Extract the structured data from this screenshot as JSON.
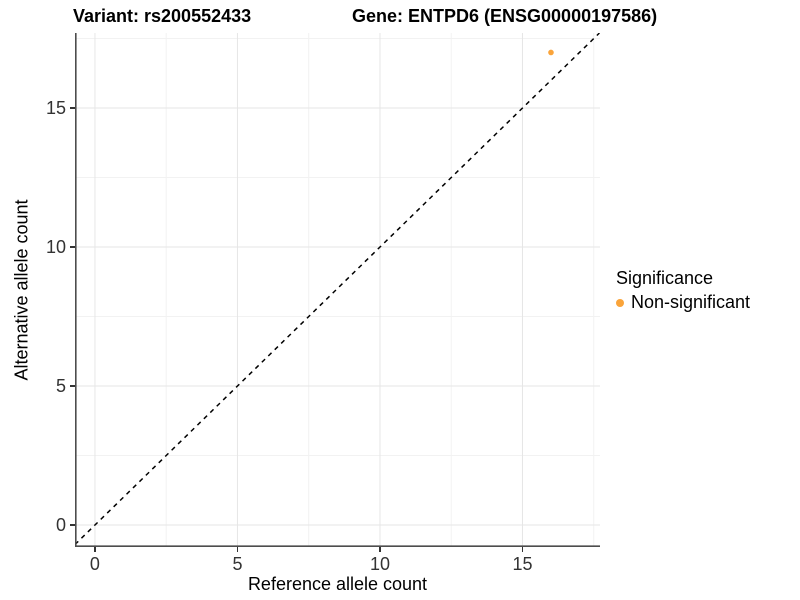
{
  "figure": {
    "title_left": "Variant: rs200552433",
    "title_right": "Gene: ENTPD6 (ENSG00000197586)",
    "x_axis_title": "Reference allele count",
    "y_axis_title": "Alternative allele count",
    "legend_title": "Significance",
    "legend_items": [
      {
        "label": "Non-significant",
        "color": "#FAA43A"
      }
    ]
  },
  "chart_data": {
    "type": "scatter",
    "title": "Variant: rs200552433 / Gene: ENTPD6 (ENSG00000197586)",
    "xlabel": "Reference allele count",
    "ylabel": "Alternative allele count",
    "xlim": [
      -0.7,
      17.72
    ],
    "ylim": [
      -0.79,
      17.7
    ],
    "x_major_ticks": [
      0,
      5,
      10,
      15
    ],
    "x_minor_ticks": [
      2.5,
      7.5,
      12.5,
      17.5
    ],
    "y_major_ticks": [
      0,
      5,
      10,
      15
    ],
    "y_minor_ticks": [
      2.5,
      7.5,
      12.5,
      17.5
    ],
    "grid": true,
    "legend": {
      "title": "Significance",
      "position": "right"
    },
    "series": [
      {
        "name": "Non-significant",
        "color": "#FAA43A",
        "points": [
          {
            "x": 16,
            "y": 17
          }
        ]
      }
    ],
    "reference_line": {
      "kind": "diagonal",
      "equation": "y = x",
      "style": "dashed",
      "color": "#000000"
    },
    "styles": {
      "grid_major_color": "#e6e6e6",
      "grid_minor_color": "#f2f2f2",
      "axis_line_color": "#4d4d4d",
      "tick_color": "#333333"
    }
  }
}
